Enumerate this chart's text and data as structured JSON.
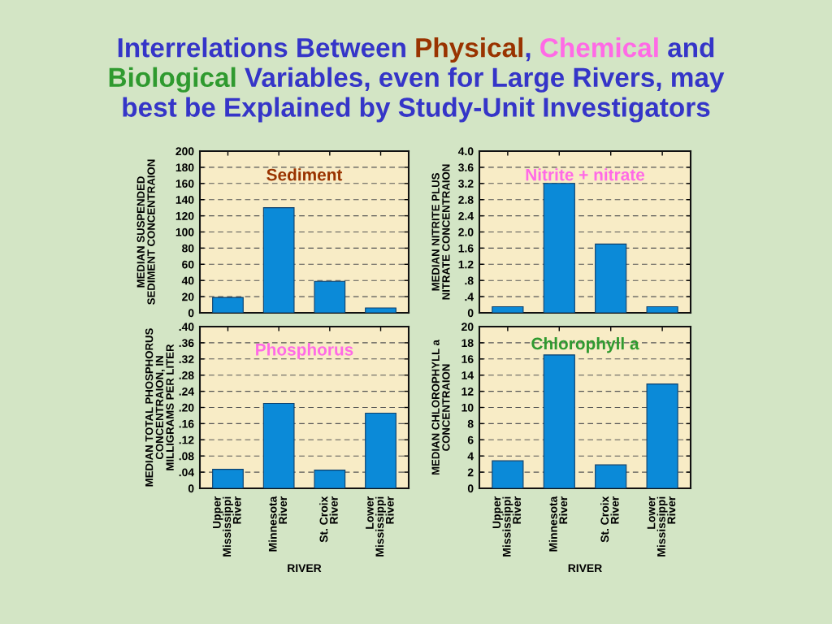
{
  "chart_data": [
    {
      "type": "other",
      "title": "Interrelations Between Physical, Chemical and\nBiological Variables, even for Large Rivers, may\nbest be Explained by Study-Unit Investigators"
    },
    {
      "type": "bar",
      "title": "Sediment",
      "ylabel": "MEDIAN SUSPENDED\nSEDIMENT CONCENTRAION",
      "categories": [
        null,
        null,
        null,
        null
      ],
      "values": [
        19,
        130,
        39,
        6
      ],
      "color": "#0b8ad8",
      "ylim": [
        0,
        200
      ],
      "yticks": [
        0,
        20,
        40,
        60,
        80,
        100,
        120,
        140,
        160,
        180,
        200
      ],
      "grid": "y"
    },
    {
      "type": "bar",
      "title": "Nitrite + nitrate",
      "ylabel": "MEDIAN NITRITE PLUS\nNITRATE CONCENTRAION",
      "categories": [
        null,
        null,
        null,
        null
      ],
      "values": [
        0.15,
        3.2,
        1.7,
        0.15
      ],
      "color": "#0b8ad8",
      "ylim": [
        0,
        4
      ],
      "yticks": [
        0,
        {
          "value": 0.4,
          "label": ".4"
        },
        {
          "value": 0.8,
          "label": ".8"
        },
        1.2,
        1.6,
        {
          "value": 2,
          "label": "2.0"
        },
        2.4,
        2.8,
        3.2,
        3.6,
        {
          "value": 4,
          "label": "4.0"
        }
      ],
      "grid": "y"
    },
    {
      "type": "bar",
      "title": "Phosphorus",
      "ylabel": "MEDIAN TOTAL PHOSPHORUS\nCONCENTRAION, IN\nMILLIGRAMS PER LITER",
      "xlabel": "RIVER",
      "categories": [
        "Upper\nMississippi\nRiver",
        "Minnesota\nRiver",
        "St. Croix\nRiver",
        "Lower\nMississippi\nRiver"
      ],
      "values": [
        0.047,
        0.21,
        0.045,
        0.186
      ],
      "color": "#0b8ad8",
      "ylim": [
        0,
        0.4
      ],
      "yticks": [
        0,
        {
          "value": 0.04,
          "label": ".04"
        },
        {
          "value": 0.08,
          "label": ".08"
        },
        {
          "value": 0.12,
          "label": ".12"
        },
        {
          "value": 0.16,
          "label": ".16"
        },
        {
          "value": 0.2,
          "label": ".20"
        },
        {
          "value": 0.24,
          "label": ".24"
        },
        {
          "value": 0.28,
          "label": ".28"
        },
        {
          "value": 0.32,
          "label": ".32"
        },
        {
          "value": 0.36,
          "label": ".36"
        },
        {
          "value": 0.4,
          "label": ".40"
        }
      ],
      "grid": "y"
    },
    {
      "type": "bar",
      "title": "Chlorophyll a",
      "ylabel": "MEDIAN CHLOROPHYLL a\nCONCENTRAION",
      "xlabel": "RIVER",
      "categories": [
        "Upper\nMississippi\nRiver",
        "Minnesota\nRiver",
        "St. Croix\nRiver",
        "Lower\nMississippi\nRiver"
      ],
      "values": [
        3.4,
        16.5,
        2.9,
        12.9
      ],
      "color": "#0b8ad8",
      "ylim": [
        0,
        20
      ],
      "yticks": [
        0,
        2,
        4,
        6,
        8,
        10,
        12,
        14,
        16,
        18,
        20
      ],
      "grid": "y"
    }
  ]
}
